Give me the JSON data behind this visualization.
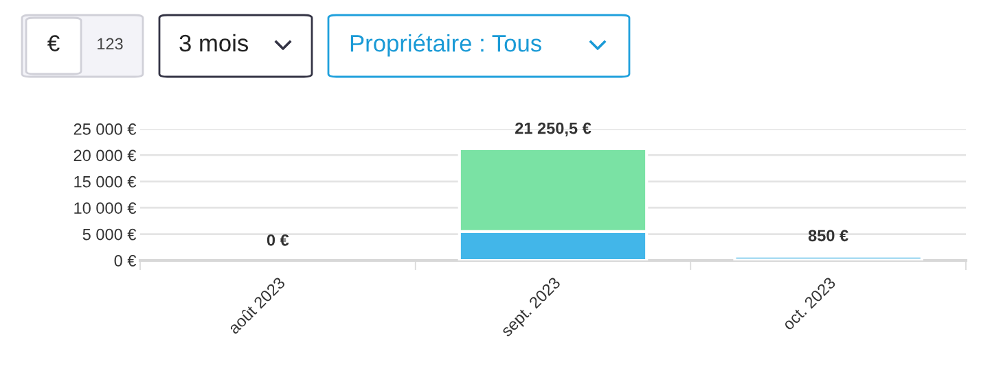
{
  "chart_data": {
    "type": "bar",
    "stacked": true,
    "categories": [
      "août 2023",
      "sept. 2023",
      "oct. 2023"
    ],
    "series": [
      {
        "color": "#42b6e9",
        "values": [
          null,
          5500,
          null
        ]
      },
      {
        "color": "#7ae2a4",
        "values": [
          null,
          15750.5,
          null
        ]
      },
      {
        "color": "#a9dcf2",
        "values": [
          null,
          null,
          850
        ]
      }
    ],
    "totals": [
      "0 €",
      "21 250,5 €",
      "850 €"
    ],
    "ylim": [
      0,
      25000
    ],
    "yticks": [
      {
        "value": 0,
        "label": "0 €"
      },
      {
        "value": 5000,
        "label": "5 000 €"
      },
      {
        "value": 10000,
        "label": "10 000 €"
      },
      {
        "value": 15000,
        "label": "15 000 €"
      },
      {
        "value": 20000,
        "label": "20 000 €"
      },
      {
        "value": 25000,
        "label": "25 000 €"
      }
    ],
    "grid": "y",
    "legend": false,
    "annotations": [
      "€",
      "123",
      "3 mois",
      "Propriétaire : Tous"
    ]
  }
}
